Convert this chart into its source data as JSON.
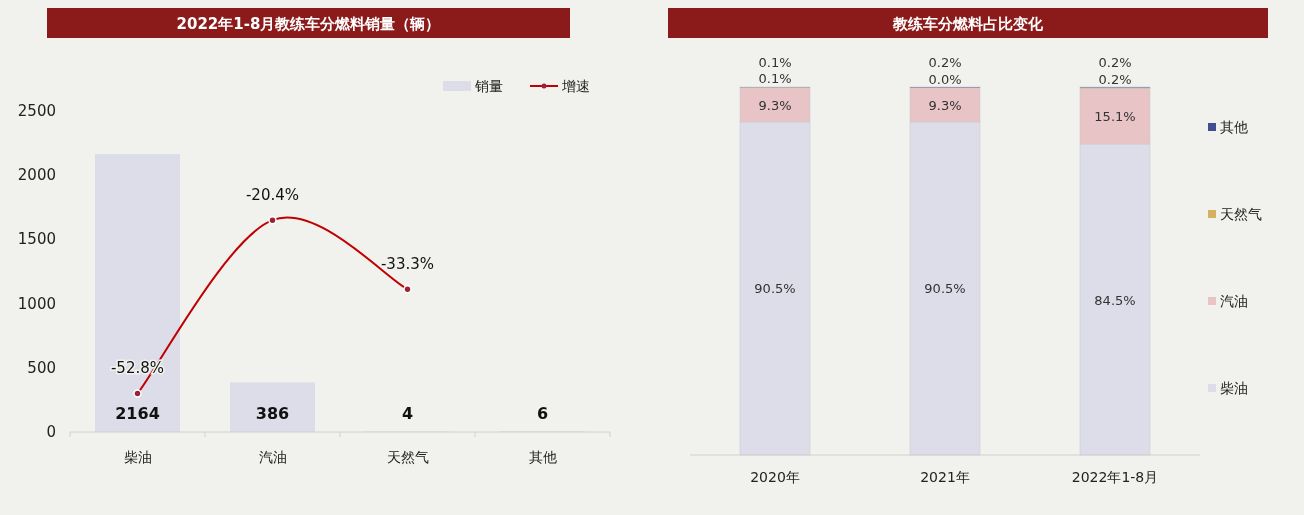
{
  "chart_data": [
    {
      "type": "bar",
      "title": "2022年1-8月教练车分燃料销量（辆）",
      "categories": [
        "柴油",
        "汽油",
        "天然气",
        "其他"
      ],
      "ylim": [
        0,
        2500
      ],
      "yticks": [
        0,
        500,
        1000,
        1500,
        2000,
        2500
      ],
      "y2lim": [
        -60,
        0
      ],
      "legend": "top right",
      "grid": false,
      "series": [
        {
          "name": "销量",
          "color": "#dcdde8",
          "values": [
            2164,
            386,
            4,
            6
          ],
          "value_labels": [
            "2164",
            "386",
            "4",
            "6"
          ]
        },
        {
          "name": "增速",
          "type": "line",
          "axis": "y2",
          "color": "#c00000",
          "marker": "circle",
          "line_style": "solid",
          "values": [
            -52.8,
            -20.4,
            -33.3,
            null
          ],
          "value_labels": [
            "-52.8%",
            "-20.4%",
            "-33.3%",
            null
          ]
        }
      ]
    },
    {
      "type": "bar",
      "title": "教练车分燃料占比变化",
      "categories": [
        "2020年",
        "2021年",
        "2022年1-8月"
      ],
      "stacked": true,
      "legend": "right",
      "grid": false,
      "series": [
        {
          "name": "柴油",
          "color": "#dcdde8",
          "values": [
            90.5,
            90.5,
            84.5
          ],
          "value_labels": [
            "90.5%",
            "90.5%",
            "84.5%"
          ]
        },
        {
          "name": "汽油",
          "color": "#e8c4c6",
          "values": [
            9.3,
            9.3,
            15.1
          ],
          "value_labels": [
            "9.3%",
            "9.3%",
            "15.1%"
          ]
        },
        {
          "name": "天然气",
          "color": "#d4b060",
          "values": [
            0.1,
            0.0,
            0.2
          ],
          "value_labels": [
            "0.1%",
            "0.0%",
            "0.2%"
          ]
        },
        {
          "name": "其他",
          "color": "#3f4f8f",
          "values": [
            0.1,
            0.2,
            0.2
          ],
          "value_labels": [
            "0.1%",
            "0.2%",
            "0.2%"
          ]
        }
      ]
    }
  ]
}
